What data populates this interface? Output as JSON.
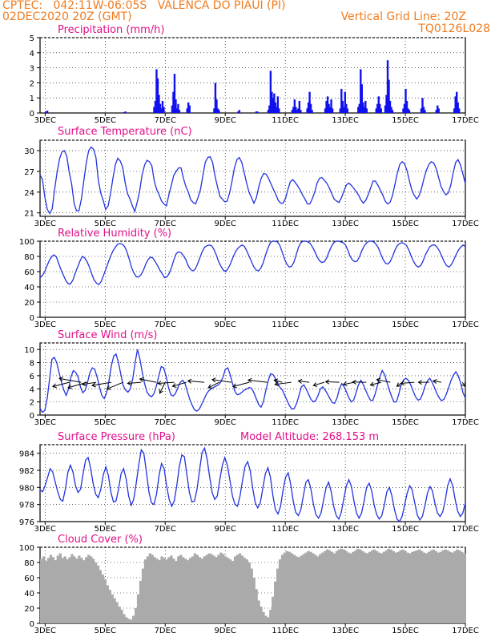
{
  "header": {
    "line1": "CPTEC:   042:11W-06:05S   VALENCA DO PIAUI (PI)",
    "line2_left": "02DEC2020 20Z (GMT)",
    "line2_right": "Vertical Grid Line: 20Z",
    "line3_right": "TQ0126L028"
  },
  "colors": {
    "line": "#2233dd",
    "bars": "#1111ee",
    "title": "#e0108a",
    "header": "#f07b1e",
    "cloud": "#aaaaaa",
    "arrow": "#000000"
  },
  "x_ticks": [
    "3DEC",
    "5DEC",
    "7DEC",
    "9DEC",
    "11DEC",
    "13DEC",
    "15DEC",
    "17DEC"
  ],
  "chart_data": [
    {
      "type": "bar",
      "title": "Precipitation (mm/h)",
      "ylim": [
        0,
        5
      ],
      "yticks": [
        "0",
        "1",
        "2",
        "3",
        "4",
        "5"
      ],
      "x_start_day": 2.83,
      "x_end_day": 17.0,
      "events": [
        {
          "day": 3.0,
          "values": [
            0.1,
            0.15
          ]
        },
        {
          "day": 5.6,
          "values": [
            0.05,
            0.1
          ]
        },
        {
          "day": 6.6,
          "values": [
            0.4,
            0.8,
            2.9,
            2.3,
            1.2,
            0.6,
            0.3,
            0.8,
            0.4
          ]
        },
        {
          "day": 7.2,
          "values": [
            0.5,
            1.4,
            2.6,
            0.9,
            0.3,
            0.6,
            0.2
          ]
        },
        {
          "day": 7.7,
          "values": [
            0.3,
            0.7,
            0.5
          ]
        },
        {
          "day": 8.6,
          "values": [
            0.3,
            2.0,
            0.9,
            0.3,
            0.2
          ]
        },
        {
          "day": 9.4,
          "values": [
            0.1,
            0.2
          ]
        },
        {
          "day": 10.0,
          "values": [
            0.1,
            0.1
          ]
        },
        {
          "day": 10.4,
          "values": [
            0.2,
            0.5,
            2.8,
            1.4,
            1.0,
            1.3,
            0.7,
            0.4,
            1.1,
            0.3
          ]
        },
        {
          "day": 11.2,
          "values": [
            0.2,
            0.4,
            0.9,
            0.4,
            0.2,
            0.3,
            0.8,
            0.2
          ]
        },
        {
          "day": 11.7,
          "values": [
            0.3,
            0.7,
            1.4,
            0.6,
            0.2
          ]
        },
        {
          "day": 12.3,
          "values": [
            0.3,
            0.8,
            1.1,
            0.6,
            0.4,
            0.9,
            0.3
          ]
        },
        {
          "day": 12.8,
          "values": [
            0.3,
            1.6,
            0.8,
            0.4,
            1.4,
            0.6,
            0.3
          ]
        },
        {
          "day": 13.4,
          "values": [
            0.4,
            0.6,
            2.9,
            1.9,
            0.7,
            0.4,
            0.8,
            0.3
          ]
        },
        {
          "day": 14.0,
          "values": [
            0.3,
            0.6,
            1.1,
            0.6,
            0.3
          ]
        },
        {
          "day": 14.3,
          "values": [
            0.5,
            1.2,
            3.5,
            2.2,
            0.8,
            0.4,
            0.2
          ]
        },
        {
          "day": 14.9,
          "values": [
            0.3,
            0.6,
            1.6,
            0.8,
            0.3,
            0.2
          ]
        },
        {
          "day": 15.5,
          "values": [
            0.3,
            1.0,
            0.4,
            0.2
          ]
        },
        {
          "day": 16.0,
          "values": [
            0.2,
            0.5,
            0.3
          ]
        },
        {
          "day": 16.6,
          "values": [
            0.3,
            1.1,
            1.4,
            0.7,
            0.3
          ]
        }
      ]
    },
    {
      "type": "line",
      "title": "Surface Temperature (nC)",
      "ylim": [
        20.5,
        31.5
      ],
      "yticks": [
        21,
        24,
        27,
        30
      ],
      "x_start_day": 2.83,
      "x_end_day": 17.0,
      "values": [
        26.5,
        25.8,
        23.2,
        21.5,
        20.9,
        21.6,
        24.4,
        26.8,
        28.8,
        29.8,
        30.0,
        29.2,
        26.9,
        25.2,
        22.4,
        21.3,
        21.3,
        23.0,
        25.6,
        28.2,
        30.0,
        30.5,
        30.2,
        29.0,
        25.7,
        23.8,
        22.8,
        21.5,
        22.0,
        23.8,
        26.0,
        28.0,
        28.9,
        28.5,
        27.6,
        25.4,
        23.8,
        23.0,
        22.0,
        21.2,
        22.6,
        24.2,
        26.5,
        27.9,
        28.6,
        28.4,
        27.8,
        25.6,
        24.4,
        23.6,
        22.7,
        22.3,
        22.0,
        23.6,
        25.0,
        26.4,
        27.0,
        27.5,
        27.5,
        26.0,
        24.8,
        24.0,
        22.9,
        22.5,
        22.3,
        23.2,
        24.4,
        26.4,
        28.3,
        29.0,
        29.1,
        28.3,
        26.3,
        24.8,
        23.4,
        23.0,
        22.6,
        22.7,
        23.9,
        25.6,
        27.5,
        28.7,
        29.0,
        28.3,
        26.8,
        25.3,
        24.0,
        23.2,
        22.4,
        23.2,
        24.8,
        26.0,
        26.7,
        26.6,
        26.0,
        25.2,
        24.4,
        23.7,
        22.8,
        22.4,
        22.4,
        23.1,
        24.4,
        25.5,
        25.8,
        25.4,
        24.9,
        24.3,
        23.6,
        23.0,
        22.3,
        22.3,
        23.0,
        24.0,
        25.3,
        26.0,
        26.1,
        25.7,
        25.3,
        24.6,
        23.8,
        23.0,
        22.7,
        22.5,
        23.2,
        24.1,
        25.0,
        25.3,
        25.0,
        24.6,
        24.1,
        23.6,
        22.9,
        22.4,
        22.8,
        23.6,
        24.6,
        25.6,
        25.6,
        25.0,
        24.3,
        23.6,
        22.7,
        22.3,
        22.5,
        23.5,
        25.1,
        26.7,
        28.0,
        28.4,
        28.1,
        27.1,
        25.6,
        24.3,
        23.5,
        23.0,
        23.5,
        24.6,
        26.0,
        27.2,
        28.0,
        28.4,
        28.2,
        27.4,
        26.1,
        24.8,
        24.1,
        23.6,
        23.9,
        25.0,
        26.8,
        28.3,
        28.7,
        27.9,
        26.6,
        25.2
      ]
    },
    {
      "type": "line",
      "title": "Relative Humidity (%)",
      "ylim": [
        0,
        100
      ],
      "yticks": [
        0,
        20,
        40,
        60,
        80,
        100
      ],
      "x_start_day": 2.83,
      "x_end_day": 17.0,
      "values": [
        52,
        55,
        60,
        68,
        75,
        80,
        82,
        79,
        70,
        62,
        55,
        48,
        44,
        44,
        49,
        58,
        66,
        74,
        80,
        78,
        73,
        66,
        57,
        49,
        45,
        43,
        47,
        55,
        63,
        72,
        80,
        87,
        92,
        96,
        97,
        96,
        93,
        86,
        76,
        65,
        58,
        53,
        53,
        56,
        62,
        70,
        76,
        79,
        78,
        73,
        68,
        62,
        57,
        52,
        53,
        58,
        66,
        76,
        84,
        86,
        85,
        81,
        76,
        68,
        63,
        61,
        63,
        70,
        78,
        86,
        92,
        94,
        95,
        94,
        89,
        82,
        73,
        67,
        62,
        60,
        64,
        70,
        78,
        85,
        90,
        93,
        95,
        93,
        87,
        80,
        73,
        66,
        62,
        61,
        65,
        72,
        82,
        91,
        98,
        100,
        100,
        99,
        95,
        86,
        77,
        70,
        66,
        67,
        72,
        82,
        92,
        98,
        100,
        100,
        99,
        97,
        92,
        86,
        79,
        74,
        72,
        73,
        78,
        86,
        93,
        98,
        100,
        100,
        99,
        98,
        95,
        88,
        80,
        75,
        73,
        74,
        80,
        88,
        94,
        98,
        100,
        100,
        99,
        96,
        91,
        83,
        76,
        71,
        70,
        73,
        80,
        88,
        94,
        97,
        98,
        97,
        94,
        88,
        80,
        73,
        68,
        66,
        68,
        74,
        82,
        88,
        93,
        95,
        95,
        92,
        87,
        80,
        73,
        68,
        66,
        69,
        75,
        82,
        88,
        92,
        95,
        93
      ]
    },
    {
      "type": "line",
      "title": "Surface Wind (m/s)",
      "ylim": [
        0,
        11
      ],
      "yticks": [
        0,
        2,
        4,
        6,
        8,
        10
      ],
      "x_start_day": 2.83,
      "x_end_day": 17.0,
      "values": [
        1.0,
        0.4,
        0.7,
        2.5,
        5.5,
        8.5,
        8.8,
        8.0,
        6.5,
        5.0,
        3.8,
        3.0,
        4.0,
        5.8,
        6.8,
        6.5,
        5.8,
        4.3,
        3.4,
        3.8,
        5.0,
        6.5,
        7.2,
        7.0,
        5.8,
        4.3,
        3.0,
        2.5,
        3.4,
        5.2,
        7.5,
        9.0,
        9.3,
        8.0,
        6.2,
        4.5,
        3.8,
        3.5,
        4.0,
        5.5,
        8.0,
        10.0,
        8.6,
        6.5,
        4.8,
        3.5,
        3.0,
        2.8,
        3.3,
        4.5,
        6.0,
        7.4,
        7.2,
        6.0,
        4.3,
        3.1,
        2.9,
        3.3,
        4.2,
        5.0,
        5.3,
        4.8,
        3.6,
        2.4,
        1.5,
        0.8,
        0.6,
        0.9,
        1.6,
        2.4,
        3.2,
        3.7,
        4.0,
        4.2,
        4.4,
        4.6,
        5.0,
        5.8,
        7.0,
        7.2,
        6.2,
        4.8,
        3.6,
        3.1,
        3.2,
        3.5,
        3.8,
        4.0,
        4.2,
        4.1,
        3.4,
        2.5,
        1.6,
        1.2,
        2.0,
        3.7,
        5.2,
        6.3,
        6.2,
        5.6,
        4.8,
        4.2,
        3.8,
        3.0,
        2.2,
        1.4,
        0.9,
        1.0,
        1.8,
        3.0,
        4.3,
        4.6,
        4.0,
        3.2,
        2.4,
        2.0,
        2.2,
        3.0,
        4.0,
        4.3,
        3.8,
        3.2,
        2.5,
        1.9,
        1.8,
        2.6,
        4.0,
        4.8,
        4.3,
        3.5,
        2.6,
        2.0,
        2.3,
        3.4,
        4.6,
        5.3,
        4.7,
        3.8,
        3.0,
        2.3,
        2.2,
        3.2,
        4.5,
        5.8,
        6.8,
        6.2,
        5.0,
        3.8,
        2.8,
        2.0,
        2.0,
        3.2,
        4.6,
        5.4,
        5.6,
        5.3,
        4.6,
        3.7,
        2.8,
        2.3,
        2.4,
        3.2,
        4.4,
        5.2,
        5.6,
        5.0,
        4.2,
        3.3,
        2.6,
        2.2,
        2.4,
        3.2,
        4.2,
        5.3,
        6.1,
        6.6,
        6.0,
        4.9,
        3.4,
        2.6
      ],
      "vectors": [
        {
          "day": 3.8,
          "u": -6,
          "v": -1.6
        },
        {
          "day": 4.2,
          "u": -8,
          "v": 1.4
        },
        {
          "day": 4.4,
          "u": -7,
          "v": -2
        },
        {
          "day": 4.7,
          "u": -5,
          "v": -0.8
        },
        {
          "day": 5.2,
          "u": -7,
          "v": -1.2
        },
        {
          "day": 5.6,
          "u": -6,
          "v": -2.5
        },
        {
          "day": 6.2,
          "u": -5,
          "v": -0.4
        },
        {
          "day": 6.7,
          "u": -6,
          "v": 1.2
        },
        {
          "day": 7.0,
          "u": -2,
          "v": -4
        },
        {
          "day": 7.3,
          "u": -6,
          "v": -0.4
        },
        {
          "day": 7.7,
          "u": -5,
          "v": -1.5
        },
        {
          "day": 8.3,
          "u": -6,
          "v": 0.5
        },
        {
          "day": 8.8,
          "u": -4,
          "v": -2.0
        },
        {
          "day": 9.2,
          "u": -7,
          "v": 1.0
        },
        {
          "day": 9.8,
          "u": -6,
          "v": -1.6
        },
        {
          "day": 10.4,
          "u": -7,
          "v": 0.8
        },
        {
          "day": 10.9,
          "u": -3,
          "v": 0.8
        },
        {
          "day": 11.2,
          "u": -6,
          "v": -0.8
        },
        {
          "day": 11.8,
          "u": -4,
          "v": 0.5
        },
        {
          "day": 12.3,
          "u": -4,
          "v": -1.2
        },
        {
          "day": 12.8,
          "u": -5,
          "v": 0.2
        },
        {
          "day": 13.3,
          "u": -4,
          "v": -0.8
        },
        {
          "day": 13.7,
          "u": -5,
          "v": 0.1
        },
        {
          "day": 14.2,
          "u": -4,
          "v": -1.0
        },
        {
          "day": 14.5,
          "u": -5,
          "v": 1.0
        },
        {
          "day": 14.9,
          "u": -2,
          "v": -1.5
        },
        {
          "day": 15.3,
          "u": -5,
          "v": -0.4
        },
        {
          "day": 15.8,
          "u": -4,
          "v": 0.0
        },
        {
          "day": 16.2,
          "u": -3,
          "v": 0.5
        },
        {
          "day": 16.9,
          "u": 1,
          "v": -1.5
        }
      ]
    },
    {
      "type": "line",
      "title": "Surface Pressure (hPa)",
      "subtitle": "Model Altitude: 268.153 m",
      "ylim": [
        976,
        985
      ],
      "yticks": [
        976,
        978,
        980,
        982,
        984
      ],
      "x_start_day": 2.83,
      "x_end_day": 17.0,
      "values": [
        979.7,
        979.5,
        980.2,
        981.2,
        982.2,
        981.8,
        980.6,
        979.5,
        978.6,
        978.4,
        979.8,
        981.8,
        982.6,
        981.8,
        980.2,
        979.4,
        979.8,
        981.6,
        983.2,
        983.5,
        982.2,
        980.4,
        979.2,
        978.8,
        979.8,
        981.5,
        982.4,
        981.4,
        979.4,
        978.3,
        978.4,
        979.8,
        981.6,
        982.2,
        981.0,
        979.0,
        977.9,
        978.6,
        980.5,
        982.7,
        984.4,
        984.0,
        981.8,
        979.5,
        978.2,
        978.0,
        979.2,
        981.4,
        982.8,
        982.2,
        980.2,
        978.6,
        977.8,
        978.4,
        980.2,
        982.4,
        983.8,
        983.6,
        981.5,
        979.4,
        978.3,
        978.4,
        979.8,
        982.0,
        984.1,
        984.6,
        983.3,
        981.2,
        979.4,
        978.6,
        979.0,
        980.9,
        982.6,
        983.5,
        982.6,
        980.8,
        979.0,
        978.0,
        977.8,
        979.0,
        980.9,
        982.5,
        983.0,
        982.0,
        979.9,
        978.2,
        977.6,
        978.2,
        979.9,
        981.6,
        982.3,
        981.2,
        979.0,
        977.4,
        976.9,
        977.8,
        979.7,
        981.2,
        981.7,
        980.4,
        978.4,
        977.1,
        976.7,
        977.4,
        979.0,
        980.6,
        980.9,
        979.8,
        978.0,
        976.8,
        976.4,
        977.0,
        978.5,
        980.0,
        980.6,
        979.5,
        977.8,
        976.7,
        976.3,
        977.1,
        978.7,
        980.2,
        980.9,
        980.1,
        978.4,
        977.0,
        976.4,
        977.0,
        978.4,
        980.0,
        980.5,
        979.6,
        977.9,
        976.8,
        976.3,
        976.7,
        978.0,
        979.5,
        980.0,
        979.0,
        977.4,
        976.3,
        976.0,
        976.6,
        977.9,
        979.3,
        980.2,
        979.7,
        978.2,
        976.8,
        976.2,
        976.6,
        977.8,
        979.3,
        980.1,
        979.6,
        978.1,
        977.0,
        976.6,
        977.1,
        978.4,
        980.2,
        981.0,
        980.2,
        978.5,
        977.2,
        976.6,
        977.0,
        978.2
      ]
    },
    {
      "type": "bar",
      "title": "Cloud Cover (%)",
      "ylim": [
        0,
        100
      ],
      "yticks": [
        0,
        20,
        40,
        60,
        80,
        100
      ],
      "x_start_day": 2.83,
      "x_end_day": 17.0,
      "values": [
        85,
        88,
        82,
        86,
        90,
        87,
        83,
        89,
        92,
        86,
        88,
        84,
        87,
        91,
        88,
        85,
        89,
        86,
        83,
        87,
        90,
        88,
        85,
        80,
        76,
        70,
        64,
        58,
        50,
        44,
        38,
        33,
        28,
        22,
        18,
        12,
        8,
        6,
        5,
        10,
        20,
        38,
        56,
        72,
        84,
        88,
        92,
        90,
        87,
        85,
        83,
        88,
        86,
        84,
        87,
        89,
        85,
        82,
        88,
        90,
        87,
        85,
        83,
        86,
        88,
        92,
        90,
        87,
        85,
        88,
        90,
        92,
        91,
        89,
        87,
        90,
        93,
        91,
        88,
        86,
        84,
        82,
        88,
        90,
        92,
        89,
        86,
        84,
        80,
        72,
        60,
        45,
        30,
        22,
        15,
        10,
        8,
        18,
        35,
        55,
        72,
        84,
        90,
        93,
        95,
        94,
        92,
        90,
        88,
        87,
        89,
        91,
        93,
        95,
        94,
        92,
        90,
        88,
        91,
        93,
        95,
        97,
        96,
        94,
        92,
        95,
        97,
        98,
        97,
        95,
        93,
        92,
        94,
        96,
        98,
        97,
        95,
        93,
        92,
        94,
        96,
        97,
        95,
        93,
        92,
        94,
        96,
        98,
        97,
        95,
        93,
        94,
        96,
        97,
        95,
        93,
        92,
        94,
        95,
        96,
        97,
        95,
        93,
        92,
        94,
        96,
        97,
        95,
        93,
        94,
        96,
        97,
        96,
        94,
        93,
        95,
        97,
        96,
        94,
        92
      ]
    }
  ]
}
